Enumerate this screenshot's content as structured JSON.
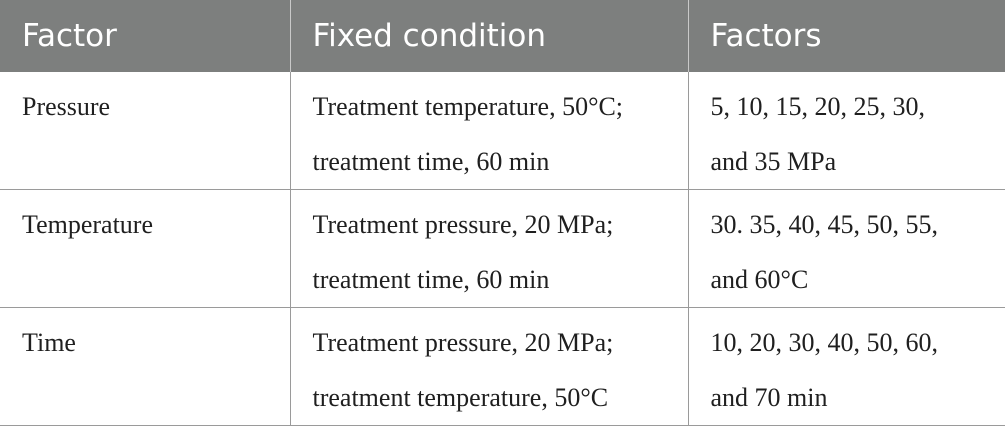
{
  "table": {
    "headers": [
      "Factor",
      "Fixed condition",
      "Factors"
    ],
    "rows": [
      {
        "factor": "Pressure",
        "fixed_condition": [
          "Treatment temperature, 50°C;",
          "treatment time, 60 min"
        ],
        "factors": [
          "5, 10, 15, 20, 25, 30,",
          "and 35 MPa"
        ]
      },
      {
        "factor": "Temperature",
        "fixed_condition": [
          "Treatment pressure, 20 MPa;",
          "treatment time, 60 min"
        ],
        "factors": [
          "30. 35, 40, 45, 50, 55,",
          "and 60°C"
        ]
      },
      {
        "factor": "Time",
        "fixed_condition": [
          "Treatment pressure, 20 MPa;",
          "treatment temperature, 50°C"
        ],
        "factors": [
          "10, 20, 30, 40, 50, 60,",
          "and 70 min"
        ]
      }
    ]
  },
  "colors": {
    "header_background": "#7d7f7e",
    "header_text": "#ffffff",
    "grid_lines": "#9a9a9a"
  }
}
